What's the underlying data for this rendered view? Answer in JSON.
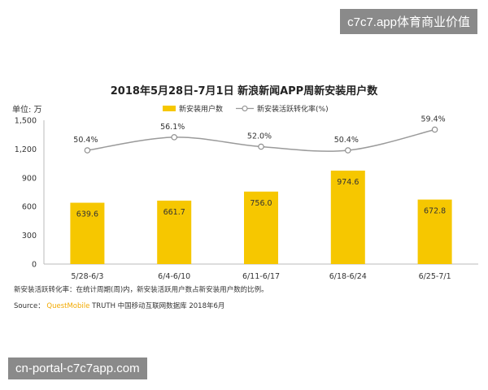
{
  "watermarks": {
    "top_right": "c7c7.app体育商业价值",
    "bottom_left": "cn-portal-c7c7app.com"
  },
  "chart_data": {
    "type": "bar",
    "title": "2018年5月28日-7月1日 新浪新闻APP周新安装用户数",
    "unit_label": "单位: 万",
    "categories": [
      "5/28-6/3",
      "6/4-6/10",
      "6/11-6/17",
      "6/18-6/24",
      "6/25-7/1"
    ],
    "series": [
      {
        "name": "新安装用户数",
        "type": "bar",
        "values": [
          639.6,
          661.7,
          756.0,
          974.6,
          672.8
        ],
        "color": "#f6c700",
        "labels": [
          "639.6",
          "661.7",
          "756.0",
          "974.6",
          "672.8"
        ]
      },
      {
        "name": "新安装活跃转化率(%)",
        "type": "line",
        "values": [
          50.4,
          56.1,
          52.0,
          50.4,
          59.4
        ],
        "color": "#999999",
        "labels": [
          "50.4%",
          "56.1%",
          "52.0%",
          "50.4%",
          "59.4%"
        ]
      }
    ],
    "ylim": [
      0,
      1500
    ],
    "yticks": [
      "0",
      "300",
      "600",
      "900",
      "1,200",
      "1,500"
    ],
    "legend_position": "top-center",
    "grid": false
  },
  "footnote": {
    "note": "新安装活跃转化率：在统计周期(周)内，新安装活跃用户数占新安装用户数的比例。",
    "source_label": "Source：",
    "source_brand": "QuestMobile",
    "source_text": "TRUTH 中国移动互联网数据库 2018年6月"
  }
}
